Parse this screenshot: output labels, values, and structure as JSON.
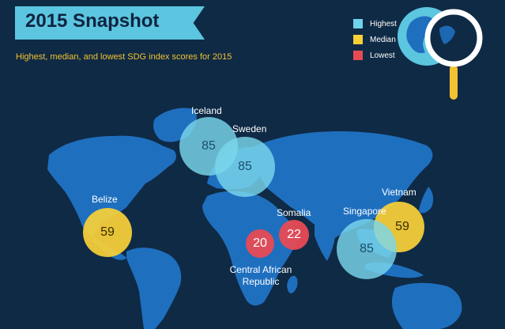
{
  "header": {
    "title": "2015 Snapshot",
    "subtitle": "Highest, median, and lowest SDG index scores for 2015"
  },
  "legend": [
    {
      "label": "Highest",
      "color": "#6fd3ec"
    },
    {
      "label": "Median",
      "color": "#f7d038"
    },
    {
      "label": "Lowest",
      "color": "#e84a54"
    }
  ],
  "colors": {
    "background": "#0f2a45",
    "land": "#1f6fbf",
    "banner": "#5cc5e0"
  },
  "countries": [
    {
      "name": "Iceland",
      "score": "85",
      "category": "Highest"
    },
    {
      "name": "Sweden",
      "score": "85",
      "category": "Highest"
    },
    {
      "name": "Belize",
      "score": "59",
      "category": "Median"
    },
    {
      "name": "Somalia",
      "score": "22",
      "category": "Lowest"
    },
    {
      "name": "Central African Republic",
      "score": "20",
      "category": "Lowest"
    },
    {
      "name": "Singapore",
      "score": "85",
      "category": "Highest"
    },
    {
      "name": "Vietnam",
      "score": "59",
      "category": "Median"
    }
  ],
  "icons": {
    "magnifier": "globe-magnifier-icon"
  }
}
